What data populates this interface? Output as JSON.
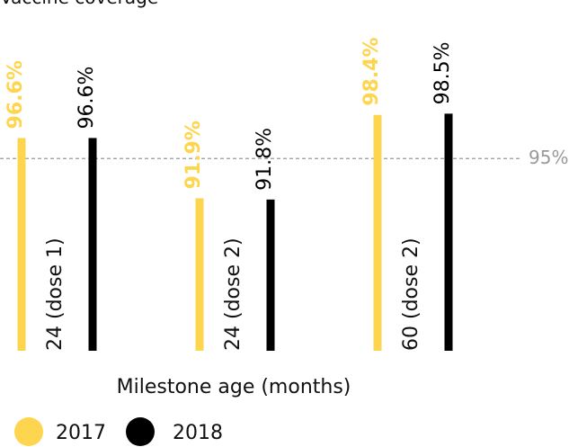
{
  "chart_data": {
    "type": "bar",
    "title": "Vaccine coverage",
    "categories": [
      "24 (dose 1)",
      "24 (dose 2)",
      "60 (dose 2)"
    ],
    "series": [
      {
        "name": "2017",
        "color": "#fdd54f",
        "values": [
          96.6,
          91.9,
          98.4
        ],
        "value_labels": [
          "96.6%",
          "91.9%",
          "98.4%"
        ]
      },
      {
        "name": "2018",
        "color": "#000000",
        "values": [
          96.6,
          91.8,
          98.5
        ],
        "value_labels": [
          "96.6%",
          "91.8%",
          "98.5%"
        ]
      }
    ],
    "ylim": [
      80,
      100
    ],
    "reference": {
      "value": 95,
      "label": "95%"
    },
    "x_label": "Milestone age (months)",
    "grid": false
  }
}
